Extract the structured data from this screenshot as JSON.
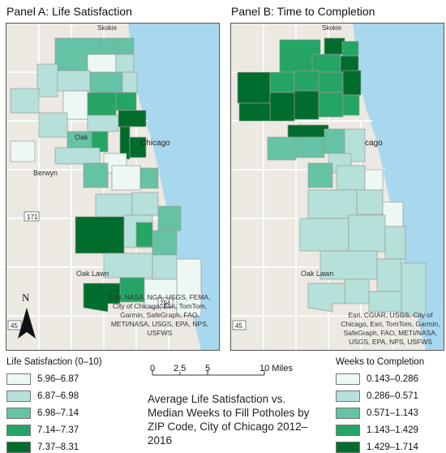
{
  "panels": [
    {
      "title": "Panel A: Life Satisfaction",
      "attribution": "Esri, NASA, NGA, USGS, FEMA, City of Chicago, Esri, TomTom, Garmin, SafeGraph, FAO, METI/NASA, USGS, EPA, NPS, USFWS"
    },
    {
      "title": "Panel B: Time to Completion",
      "attribution": "Esri, CGIAR, USGS, City of Chicago, Esri, TomTom, Garmin, SafeGraph, FAO, METI/NASA, USGS, EPA, NPS, USFWS"
    }
  ],
  "place_labels": {
    "skokie": "Skokie",
    "oak_park": "Oak",
    "chicago": "Chicago",
    "chicago_b": "cago",
    "berwyn": "Berwyn",
    "oak_lawn": "Oak Lawn",
    "hwy171": "171",
    "hwy45": "45",
    "hwy294": "294"
  },
  "north_arrow": "N",
  "legend_a": {
    "title": "Life Satisfaction (0–10)",
    "items": [
      {
        "label": "5.96–6.87",
        "color": "#edf8f4"
      },
      {
        "label": "6.87–6.98",
        "color": "#b6e0da"
      },
      {
        "label": "6.98–7.14",
        "color": "#66c2a4"
      },
      {
        "label": "7.14–7.37",
        "color": "#25a565"
      },
      {
        "label": "7.37–8.31",
        "color": "#006d2c"
      }
    ]
  },
  "legend_b": {
    "title": "Weeks to Completion",
    "items": [
      {
        "label": "0.143–0.286",
        "color": "#edf8f4"
      },
      {
        "label": "0.286–0.571",
        "color": "#b6e0da"
      },
      {
        "label": "0.571–1.143",
        "color": "#66c2a4"
      },
      {
        "label": "1.143–1.429",
        "color": "#25a565"
      },
      {
        "label": "1.429–1.714",
        "color": "#006d2c"
      }
    ]
  },
  "scale_bar": {
    "ticks": [
      "0",
      "2.5",
      "5",
      "10 Miles"
    ]
  },
  "caption": "Average Life Satisfaction vs. Median Weeks to Fill Potholes by ZIP Code, City of Chicago 2012–2016",
  "colors": {
    "lake": "#a8d8ee",
    "land": "#ece9e2",
    "road": "#ffffff"
  }
}
